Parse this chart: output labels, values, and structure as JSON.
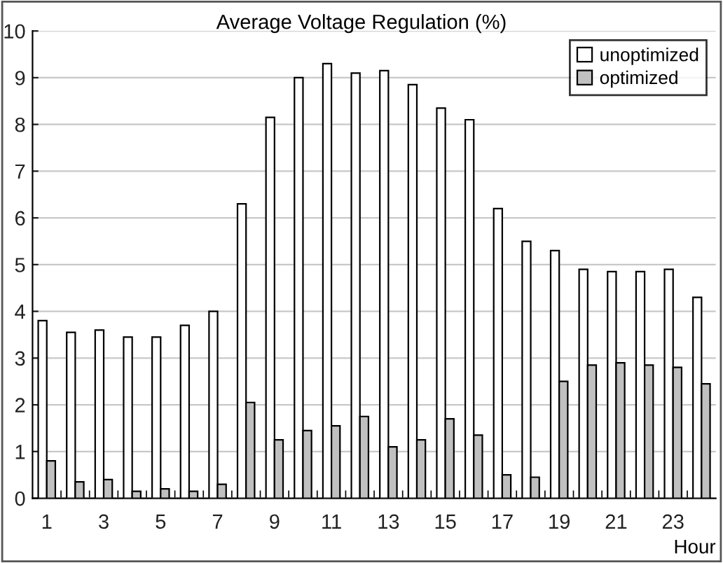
{
  "chart_data": {
    "type": "bar",
    "title": "Average Voltage Regulation (%)",
    "xlabel": "Hour",
    "categories": [
      "1",
      null,
      "3",
      null,
      "5",
      null,
      "7",
      null,
      "9",
      null,
      "11",
      null,
      "13",
      null,
      "15",
      null,
      "17",
      null,
      "19",
      null,
      "21",
      null,
      "23",
      null
    ],
    "series": [
      {
        "name": "unoptimized",
        "color": "#ffffff",
        "values": [
          3.8,
          3.55,
          3.6,
          3.45,
          3.45,
          3.7,
          4.0,
          6.3,
          8.15,
          9.0,
          9.3,
          9.1,
          9.15,
          8.85,
          8.35,
          8.1,
          6.2,
          5.5,
          5.3,
          4.9,
          4.85,
          4.85,
          4.9,
          4.3
        ]
      },
      {
        "name": "optimized",
        "color": "#c0c0c0",
        "values": [
          0.8,
          0.35,
          0.4,
          0.15,
          0.2,
          0.15,
          0.3,
          2.05,
          1.25,
          1.45,
          1.55,
          1.75,
          1.1,
          1.25,
          1.7,
          1.35,
          0.5,
          0.45,
          2.5,
          2.85,
          2.9,
          2.85,
          2.8,
          2.45
        ]
      }
    ],
    "ylim": [
      0,
      10
    ],
    "yticks": [
      0,
      1,
      2,
      3,
      4,
      5,
      6,
      7,
      8,
      9,
      10
    ],
    "grid": "y",
    "legend": "top right"
  }
}
